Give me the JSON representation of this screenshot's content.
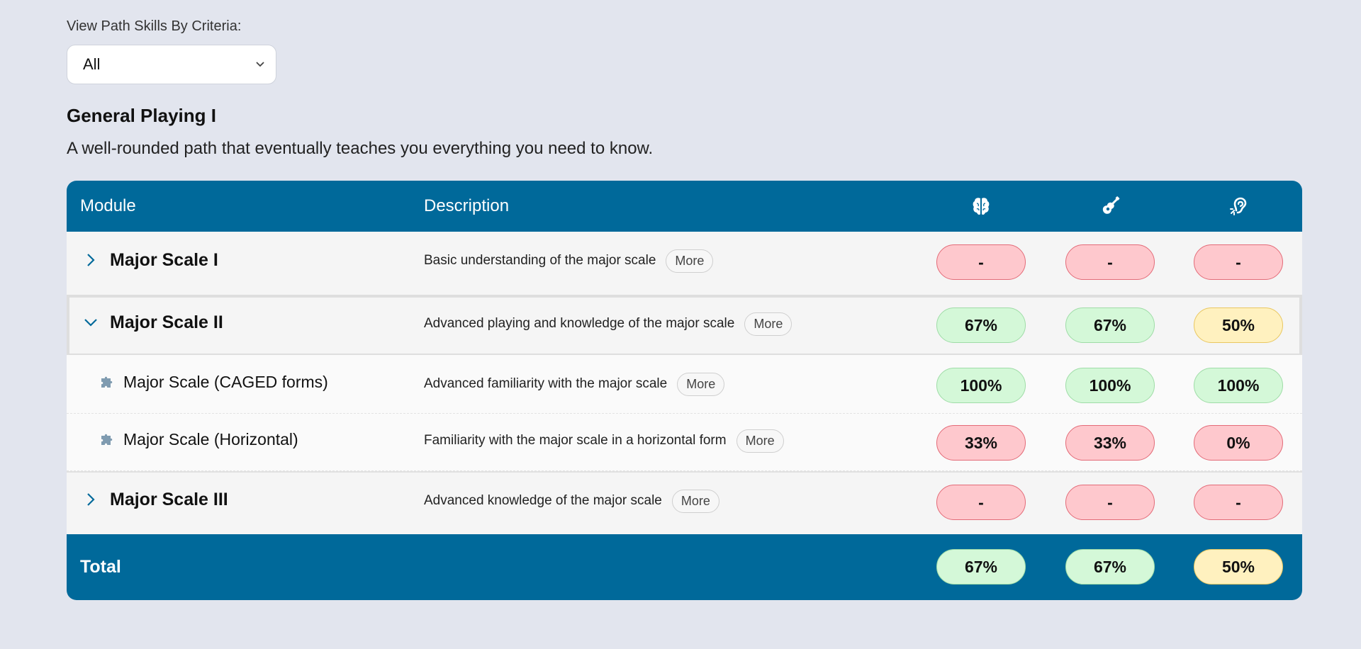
{
  "criteria": {
    "label": "View Path Skills By Criteria:",
    "selected": "All"
  },
  "path": {
    "title": "General Playing I",
    "description": "A well-rounded path that eventually teaches you everything you need to know."
  },
  "table": {
    "headers": {
      "module": "Module",
      "description": "Description",
      "icons": [
        "brain-icon",
        "guitar-icon",
        "ear-icon"
      ]
    },
    "rows": [
      {
        "name": "Major Scale I",
        "description": "Basic understanding of the major scale",
        "more": "More",
        "expanded": false,
        "scores": [
          "-",
          "-",
          "-"
        ],
        "colors": [
          "red",
          "red",
          "red"
        ]
      },
      {
        "name": "Major Scale II",
        "description": "Advanced playing and knowledge of the major scale",
        "more": "More",
        "expanded": true,
        "scores": [
          "67%",
          "67%",
          "50%"
        ],
        "colors": [
          "green",
          "green",
          "yellow"
        ]
      },
      {
        "name": "Major Scale (CAGED forms)",
        "description": "Advanced familiarity with the major scale",
        "more": "More",
        "submodule": true,
        "scores": [
          "100%",
          "100%",
          "100%"
        ],
        "colors": [
          "green",
          "green",
          "green"
        ]
      },
      {
        "name": "Major Scale (Horizontal)",
        "description": "Familiarity with the major scale in a horizontal form",
        "more": "More",
        "submodule": true,
        "scores": [
          "33%",
          "33%",
          "0%"
        ],
        "colors": [
          "red",
          "red",
          "red"
        ]
      },
      {
        "name": "Major Scale III",
        "description": "Advanced knowledge of the major scale",
        "more": "More",
        "expanded": false,
        "scores": [
          "-",
          "-",
          "-"
        ],
        "colors": [
          "red",
          "red",
          "red"
        ]
      }
    ],
    "total": {
      "label": "Total",
      "scores": [
        "67%",
        "67%",
        "50%"
      ],
      "colors": [
        "green",
        "green",
        "yellow"
      ]
    }
  },
  "colors": {
    "header_bg": "#00699a",
    "page_bg": "#e2e5ee",
    "red_pill": "#fec8cd",
    "green_pill": "#d4f8d8",
    "yellow_pill": "#fff1bf"
  }
}
